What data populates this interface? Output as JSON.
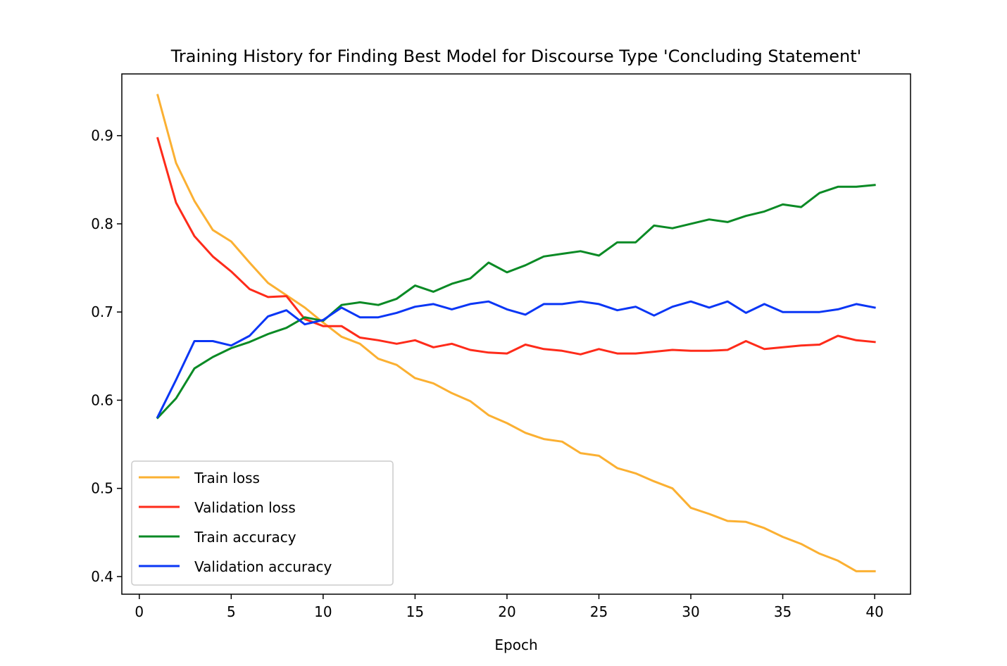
{
  "chart_data": {
    "type": "line",
    "title": "Training History for Finding Best Model for Discourse Type 'Concluding Statement'",
    "xlabel": "Epoch",
    "ylabel": "",
    "xlim": [
      -0.95,
      41.95
    ],
    "ylim": [
      0.38,
      0.97
    ],
    "x_ticks": [
      0,
      5,
      10,
      15,
      20,
      25,
      30,
      35,
      40
    ],
    "y_ticks": [
      0.4,
      0.5,
      0.6,
      0.7,
      0.8,
      0.9
    ],
    "grid": false,
    "legend_position": "lower-left",
    "x": [
      1,
      2,
      3,
      4,
      5,
      6,
      7,
      8,
      9,
      10,
      11,
      12,
      13,
      14,
      15,
      16,
      17,
      18,
      19,
      20,
      21,
      22,
      23,
      24,
      25,
      26,
      27,
      28,
      29,
      30,
      31,
      32,
      33,
      34,
      35,
      36,
      37,
      38,
      39,
      40
    ],
    "series": [
      {
        "name": "Train loss",
        "color": "#fbb032",
        "values": [
          0.946,
          0.869,
          0.826,
          0.793,
          0.78,
          0.756,
          0.733,
          0.719,
          0.705,
          0.688,
          0.672,
          0.664,
          0.647,
          0.64,
          0.625,
          0.619,
          0.608,
          0.599,
          0.583,
          0.574,
          0.563,
          0.556,
          0.553,
          0.54,
          0.537,
          0.523,
          0.517,
          0.508,
          0.5,
          0.478,
          0.471,
          0.463,
          0.462,
          0.455,
          0.445,
          0.437,
          0.426,
          0.418,
          0.406,
          0.406
        ]
      },
      {
        "name": "Validation loss",
        "color": "#fe2b1a",
        "values": [
          0.897,
          0.824,
          0.786,
          0.763,
          0.746,
          0.726,
          0.717,
          0.718,
          0.692,
          0.684,
          0.684,
          0.671,
          0.668,
          0.664,
          0.668,
          0.66,
          0.664,
          0.657,
          0.654,
          0.653,
          0.663,
          0.658,
          0.656,
          0.652,
          0.658,
          0.653,
          0.653,
          0.655,
          0.657,
          0.656,
          0.656,
          0.657,
          0.667,
          0.658,
          0.66,
          0.662,
          0.663,
          0.673,
          0.668,
          0.666
        ]
      },
      {
        "name": "Train accuracy",
        "color": "#0a8a25",
        "values": [
          0.58,
          0.602,
          0.636,
          0.649,
          0.659,
          0.666,
          0.675,
          0.682,
          0.694,
          0.69,
          0.708,
          0.711,
          0.708,
          0.715,
          0.73,
          0.723,
          0.732,
          0.738,
          0.756,
          0.745,
          0.753,
          0.763,
          0.766,
          0.769,
          0.764,
          0.779,
          0.779,
          0.798,
          0.795,
          0.8,
          0.805,
          0.802,
          0.809,
          0.814,
          0.822,
          0.819,
          0.835,
          0.842,
          0.842,
          0.844
        ]
      },
      {
        "name": "Validation accuracy",
        "color": "#0a36f5",
        "values": [
          0.581,
          0.623,
          0.667,
          0.667,
          0.662,
          0.673,
          0.695,
          0.702,
          0.686,
          0.691,
          0.705,
          0.694,
          0.694,
          0.699,
          0.706,
          0.709,
          0.703,
          0.709,
          0.712,
          0.703,
          0.697,
          0.709,
          0.709,
          0.712,
          0.709,
          0.702,
          0.706,
          0.696,
          0.706,
          0.712,
          0.705,
          0.712,
          0.699,
          0.709,
          0.7,
          0.7,
          0.7,
          0.703,
          0.709,
          0.705
        ]
      }
    ]
  }
}
